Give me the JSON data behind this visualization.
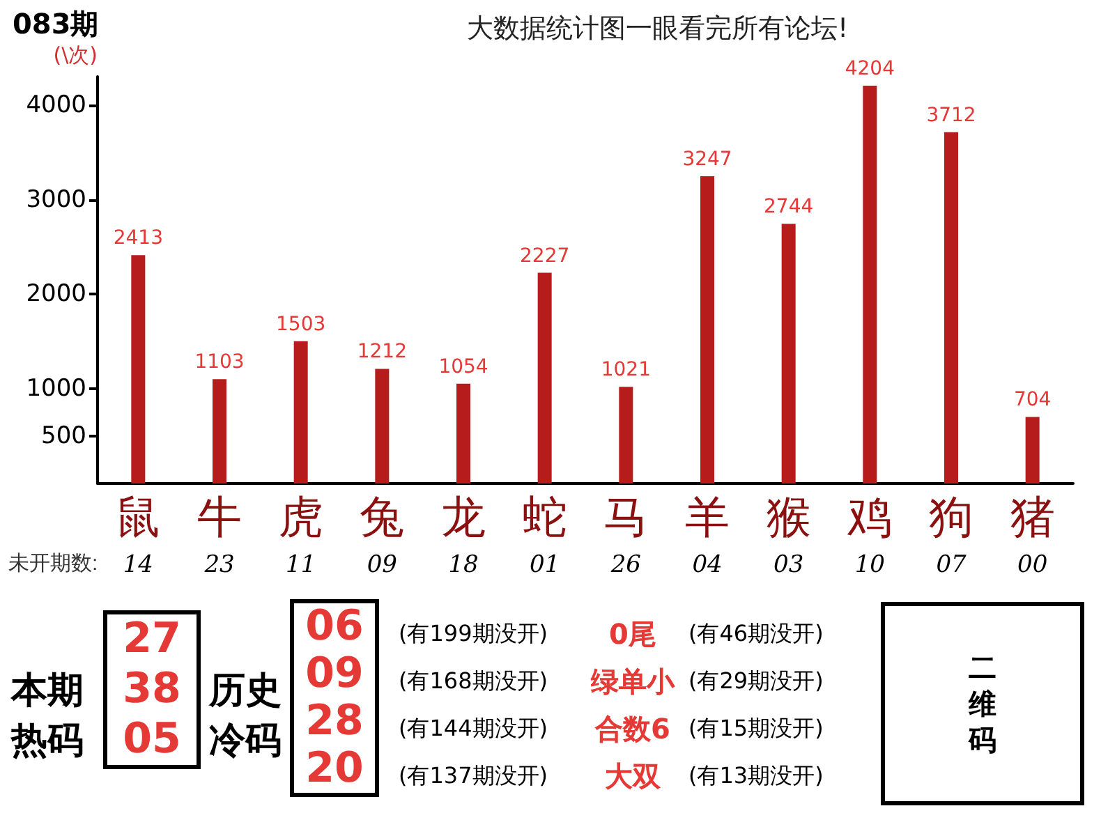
{
  "chart_data": [
    {
      "type": "bar",
      "title": "083期",
      "subtitle": "大数据统计图一眼看完所有论坛!",
      "ylabel": "(\\次)",
      "categories": [
        "鼠",
        "牛",
        "虎",
        "兔",
        "龙",
        "蛇",
        "马",
        "羊",
        "猴",
        "鸡",
        "狗",
        "猪"
      ],
      "values": [
        2413,
        1103,
        1503,
        1212,
        1054,
        2227,
        1021,
        3247,
        2744,
        4204,
        3712,
        704
      ],
      "color": "#b71c1c",
      "data_labels": true,
      "ylim": [
        0,
        4300
      ],
      "yticks": [
        500,
        1000,
        2000,
        3000,
        4000
      ],
      "grid": false,
      "annotations": [
        "未开期数:",
        "14",
        "23",
        "11",
        "09",
        "18",
        "01",
        "26",
        "04",
        "03",
        "10",
        "07",
        "00"
      ]
    },
    {
      "type": "other",
      "annotations": [
        "本期",
        "热码",
        "27",
        "38",
        "05",
        "历史",
        "冷码",
        "06",
        "09",
        "28",
        "20",
        "(有199期没开)",
        "(有168期没开)",
        "(有144期没开)",
        "(有137期没开)",
        "0尾",
        "绿单小",
        "合数6",
        "大双",
        "(有46期没开)",
        "(有29期没开)",
        "(有15期没开)",
        "(有13期没开)",
        "二维码"
      ]
    }
  ]
}
